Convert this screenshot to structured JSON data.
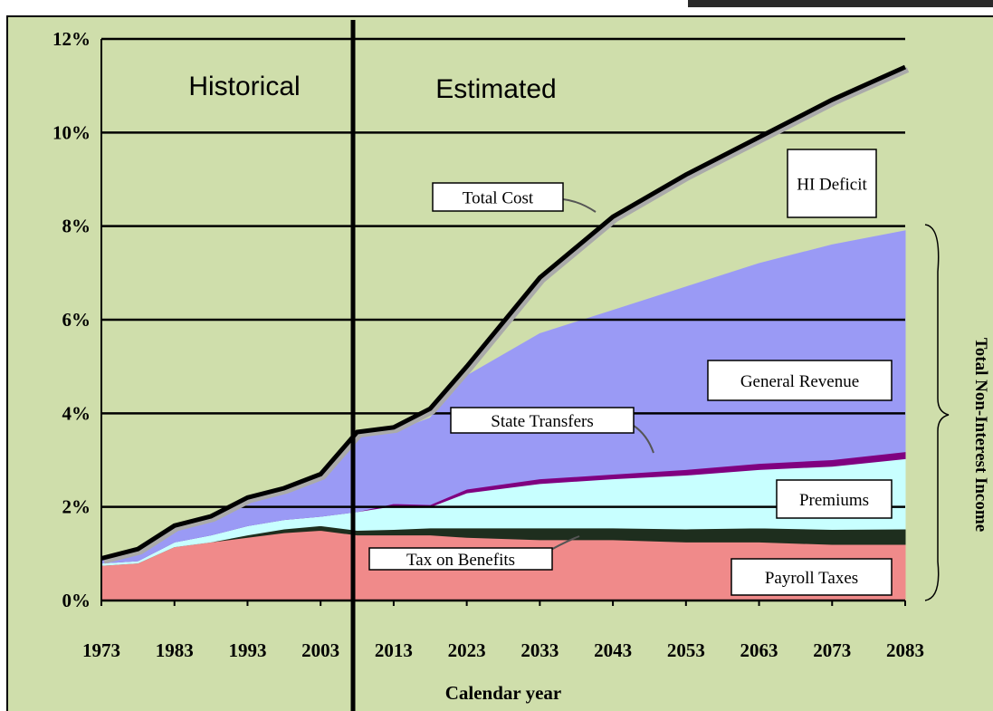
{
  "chart_data": {
    "type": "stacked_area",
    "x_label": "Calendar year",
    "annotations": {
      "historical": "Historical",
      "estimated": "Estimated",
      "hi_deficit": "HI Deficit",
      "income": "Total Non-Interest Income"
    },
    "x": [
      1973,
      1978,
      1983,
      1988,
      1993,
      1998,
      2003,
      2008,
      2013,
      2018,
      2023,
      2033,
      2043,
      2053,
      2063,
      2073,
      2083
    ],
    "series": [
      {
        "name": "Payroll Taxes",
        "kind": "area",
        "color": "#f08a8a",
        "values": [
          0.75,
          0.8,
          1.15,
          1.25,
          1.35,
          1.45,
          1.5,
          1.4,
          1.4,
          1.4,
          1.35,
          1.3,
          1.3,
          1.25,
          1.25,
          1.2,
          1.2
        ]
      },
      {
        "name": "Tax on Benefits",
        "kind": "area",
        "color": "#1e2e1e",
        "values": [
          0,
          0,
          0,
          0,
          0.05,
          0.08,
          0.1,
          0.1,
          0.12,
          0.15,
          0.2,
          0.25,
          0.25,
          0.28,
          0.3,
          0.32,
          0.33
        ]
      },
      {
        "name": "Premiums",
        "kind": "area",
        "color": "#c8ffff",
        "values": [
          0.05,
          0.05,
          0.1,
          0.15,
          0.2,
          0.2,
          0.2,
          0.4,
          0.5,
          0.45,
          0.75,
          0.95,
          1.05,
          1.15,
          1.25,
          1.35,
          1.5
        ]
      },
      {
        "name": "State Transfers",
        "kind": "area",
        "color": "#800080",
        "values": [
          0,
          0,
          0,
          0,
          0,
          0,
          0,
          0,
          0.05,
          0.05,
          0.08,
          0.1,
          0.1,
          0.12,
          0.13,
          0.14,
          0.15
        ]
      },
      {
        "name": "General Revenue",
        "kind": "area",
        "color": "#9a9af5",
        "values": [
          0.1,
          0.25,
          0.35,
          0.4,
          0.6,
          0.57,
          0.9,
          1.6,
          1.53,
          1.85,
          2.42,
          3.1,
          3.5,
          3.9,
          4.27,
          4.59,
          4.72
        ]
      },
      {
        "name": "Total Cost",
        "kind": "line",
        "color": "#000000",
        "values": [
          0.9,
          1.1,
          1.6,
          1.8,
          2.2,
          2.4,
          2.7,
          3.6,
          3.7,
          4.1,
          5.0,
          6.9,
          8.2,
          9.1,
          9.9,
          10.7,
          11.4
        ]
      }
    ],
    "xlim": [
      1973,
      2083
    ],
    "xticks": [
      1973,
      1983,
      1993,
      2003,
      2013,
      2023,
      2033,
      2043,
      2053,
      2063,
      2073,
      2083
    ],
    "ylim": [
      0,
      12
    ],
    "yticks": [
      {
        "value": 0,
        "label": "0%"
      },
      {
        "value": 2,
        "label": "2%"
      },
      {
        "value": 4,
        "label": "4%"
      },
      {
        "value": 6,
        "label": "6%"
      },
      {
        "value": 8,
        "label": "8%"
      },
      {
        "value": 10,
        "label": "10%"
      },
      {
        "value": 12,
        "label": "12%"
      }
    ],
    "grid": true
  }
}
